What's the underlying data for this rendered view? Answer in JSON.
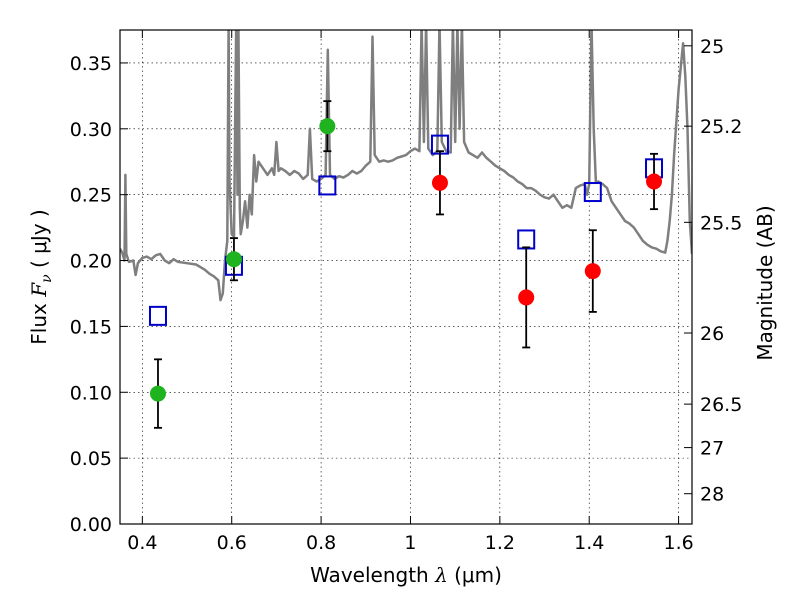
{
  "chart_data": {
    "type": "scatter",
    "title": "",
    "xlabel": {
      "prefix": "Wavelength  ",
      "symbol": "λ",
      "units": " (μm)"
    },
    "ylabel": {
      "prefix": "Flux  ",
      "symbol": "F",
      "subscript": "ν",
      "units": "  ( μJy )"
    },
    "y2label": "Magnitude (AB)",
    "xlim": [
      0.35,
      1.63
    ],
    "ylim": [
      0.0,
      0.375
    ],
    "grid": true,
    "x_ticks": [
      0.4,
      0.6,
      0.8,
      1.0,
      1.2,
      1.4,
      1.6
    ],
    "x_tick_labels": [
      "0.4",
      "0.6",
      "0.8",
      "1",
      "1.2",
      "1.4",
      "1.6"
    ],
    "y_ticks": [
      0.0,
      0.05,
      0.1,
      0.15,
      0.2,
      0.25,
      0.3,
      0.35
    ],
    "y_tick_labels": [
      "0.00",
      "0.05",
      "0.10",
      "0.15",
      "0.20",
      "0.25",
      "0.30",
      "0.35"
    ],
    "y2_ticks": [
      {
        "label": "25",
        "flux": 0.363
      },
      {
        "label": "25.2",
        "flux": 0.302
      },
      {
        "label": "25.5",
        "flux": 0.229
      },
      {
        "label": "26",
        "flux": 0.145
      },
      {
        "label": "26.5",
        "flux": 0.091
      },
      {
        "label": "27",
        "flux": 0.058
      },
      {
        "label": "28",
        "flux": 0.023
      }
    ],
    "colors": {
      "green": "#1fb41f",
      "red": "#ff0000",
      "model_box": "#0000cc",
      "spectrum": "#7f7f7f",
      "errorbar": "#000000",
      "grid": "#000000"
    },
    "series": [
      {
        "marker": "circle-green",
        "points": [
          {
            "x": 0.435,
            "y": 0.099,
            "err": 0.026
          },
          {
            "x": 0.605,
            "y": 0.201,
            "err": 0.016
          },
          {
            "x": 0.814,
            "y": 0.302,
            "err": 0.019
          }
        ]
      },
      {
        "marker": "circle-red",
        "points": [
          {
            "x": 1.066,
            "y": 0.259,
            "err": 0.024
          },
          {
            "x": 1.259,
            "y": 0.172,
            "err": 0.038
          },
          {
            "x": 1.408,
            "y": 0.192,
            "err": 0.031
          },
          {
            "x": 1.545,
            "y": 0.26,
            "err": 0.021
          }
        ]
      },
      {
        "marker": "square-blue",
        "points": [
          {
            "x": 0.435,
            "y": 0.158
          },
          {
            "x": 0.605,
            "y": 0.196
          },
          {
            "x": 0.814,
            "y": 0.257
          },
          {
            "x": 1.066,
            "y": 0.288
          },
          {
            "x": 1.259,
            "y": 0.216
          },
          {
            "x": 1.408,
            "y": 0.252
          },
          {
            "x": 1.545,
            "y": 0.27
          }
        ]
      },
      {
        "marker": "line-gray",
        "points": [
          [
            0.35,
            0.209
          ],
          [
            0.355,
            0.206
          ],
          [
            0.36,
            0.2
          ],
          [
            0.362,
            0.265
          ],
          [
            0.364,
            0.205
          ],
          [
            0.37,
            0.199
          ],
          [
            0.38,
            0.2
          ],
          [
            0.385,
            0.189
          ],
          [
            0.39,
            0.198
          ],
          [
            0.4,
            0.202
          ],
          [
            0.41,
            0.203
          ],
          [
            0.42,
            0.201
          ],
          [
            0.43,
            0.204
          ],
          [
            0.44,
            0.205
          ],
          [
            0.45,
            0.2
          ],
          [
            0.46,
            0.198
          ],
          [
            0.47,
            0.201
          ],
          [
            0.48,
            0.199
          ],
          [
            0.5,
            0.198
          ],
          [
            0.52,
            0.197
          ],
          [
            0.53,
            0.195
          ],
          [
            0.54,
            0.193
          ],
          [
            0.55,
            0.19
          ],
          [
            0.56,
            0.188
          ],
          [
            0.57,
            0.185
          ],
          [
            0.575,
            0.17
          ],
          [
            0.58,
            0.175
          ],
          [
            0.585,
            0.2
          ],
          [
            0.59,
            0.215
          ],
          [
            0.593,
            0.38
          ],
          [
            0.595,
            0.26
          ],
          [
            0.6,
            0.22
          ],
          [
            0.605,
            0.218
          ],
          [
            0.61,
            0.38
          ],
          [
            0.613,
            0.25
          ],
          [
            0.615,
            0.38
          ],
          [
            0.618,
            0.24
          ],
          [
            0.62,
            0.22
          ],
          [
            0.625,
            0.23
          ],
          [
            0.63,
            0.245
          ],
          [
            0.635,
            0.225
          ],
          [
            0.64,
            0.25
          ],
          [
            0.645,
            0.235
          ],
          [
            0.65,
            0.28
          ],
          [
            0.655,
            0.26
          ],
          [
            0.66,
            0.275
          ],
          [
            0.67,
            0.27
          ],
          [
            0.68,
            0.265
          ],
          [
            0.69,
            0.27
          ],
          [
            0.695,
            0.265
          ],
          [
            0.7,
            0.29
          ],
          [
            0.705,
            0.268
          ],
          [
            0.71,
            0.27
          ],
          [
            0.72,
            0.268
          ],
          [
            0.73,
            0.265
          ],
          [
            0.74,
            0.268
          ],
          [
            0.75,
            0.266
          ],
          [
            0.76,
            0.262
          ],
          [
            0.77,
            0.265
          ],
          [
            0.775,
            0.3
          ],
          [
            0.78,
            0.262
          ],
          [
            0.79,
            0.26
          ],
          [
            0.8,
            0.262
          ],
          [
            0.81,
            0.265
          ],
          [
            0.815,
            0.36
          ],
          [
            0.82,
            0.265
          ],
          [
            0.83,
            0.262
          ],
          [
            0.84,
            0.264
          ],
          [
            0.85,
            0.263
          ],
          [
            0.86,
            0.265
          ],
          [
            0.87,
            0.268
          ],
          [
            0.88,
            0.266
          ],
          [
            0.89,
            0.268
          ],
          [
            0.9,
            0.272
          ],
          [
            0.91,
            0.275
          ],
          [
            0.915,
            0.37
          ],
          [
            0.92,
            0.28
          ],
          [
            0.93,
            0.275
          ],
          [
            0.94,
            0.276
          ],
          [
            0.95,
            0.275
          ],
          [
            0.96,
            0.276
          ],
          [
            0.97,
            0.278
          ],
          [
            0.98,
            0.279
          ],
          [
            0.99,
            0.28
          ],
          [
            1.0,
            0.283
          ],
          [
            1.01,
            0.285
          ],
          [
            1.02,
            0.283
          ],
          [
            1.025,
            0.38
          ],
          [
            1.03,
            0.29
          ],
          [
            1.035,
            0.38
          ],
          [
            1.04,
            0.285
          ],
          [
            1.05,
            0.28
          ],
          [
            1.06,
            0.283
          ],
          [
            1.065,
            0.38
          ],
          [
            1.07,
            0.29
          ],
          [
            1.08,
            0.283
          ],
          [
            1.09,
            0.282
          ],
          [
            1.095,
            0.38
          ],
          [
            1.1,
            0.29
          ],
          [
            1.105,
            0.38
          ],
          [
            1.11,
            0.3
          ],
          [
            1.115,
            0.38
          ],
          [
            1.12,
            0.29
          ],
          [
            1.13,
            0.282
          ],
          [
            1.14,
            0.28
          ],
          [
            1.15,
            0.278
          ],
          [
            1.16,
            0.282
          ],
          [
            1.17,
            0.278
          ],
          [
            1.18,
            0.275
          ],
          [
            1.19,
            0.272
          ],
          [
            1.2,
            0.27
          ],
          [
            1.21,
            0.268
          ],
          [
            1.22,
            0.265
          ],
          [
            1.23,
            0.263
          ],
          [
            1.24,
            0.26
          ],
          [
            1.25,
            0.258
          ],
          [
            1.26,
            0.255
          ],
          [
            1.27,
            0.255
          ],
          [
            1.28,
            0.253
          ],
          [
            1.29,
            0.25
          ],
          [
            1.3,
            0.248
          ],
          [
            1.31,
            0.247
          ],
          [
            1.32,
            0.25
          ],
          [
            1.33,
            0.245
          ],
          [
            1.34,
            0.24
          ],
          [
            1.35,
            0.242
          ],
          [
            1.36,
            0.24
          ],
          [
            1.37,
            0.255
          ],
          [
            1.38,
            0.257
          ],
          [
            1.39,
            0.258
          ],
          [
            1.395,
            0.25
          ],
          [
            1.4,
            0.258
          ],
          [
            1.405,
            0.38
          ],
          [
            1.41,
            0.3
          ],
          [
            1.415,
            0.259
          ],
          [
            1.42,
            0.26
          ],
          [
            1.43,
            0.258
          ],
          [
            1.44,
            0.255
          ],
          [
            1.45,
            0.245
          ],
          [
            1.46,
            0.24
          ],
          [
            1.47,
            0.235
          ],
          [
            1.48,
            0.23
          ],
          [
            1.49,
            0.228
          ],
          [
            1.5,
            0.225
          ],
          [
            1.51,
            0.22
          ],
          [
            1.52,
            0.215
          ],
          [
            1.53,
            0.212
          ],
          [
            1.54,
            0.21
          ],
          [
            1.55,
            0.209
          ],
          [
            1.56,
            0.207
          ],
          [
            1.57,
            0.206
          ],
          [
            1.575,
            0.215
          ],
          [
            1.58,
            0.23
          ],
          [
            1.585,
            0.25
          ],
          [
            1.59,
            0.28
          ],
          [
            1.6,
            0.33
          ],
          [
            1.61,
            0.365
          ],
          [
            1.615,
            0.34
          ],
          [
            1.62,
            0.3
          ],
          [
            1.625,
            0.23
          ],
          [
            1.63,
            0.205
          ]
        ]
      }
    ]
  }
}
